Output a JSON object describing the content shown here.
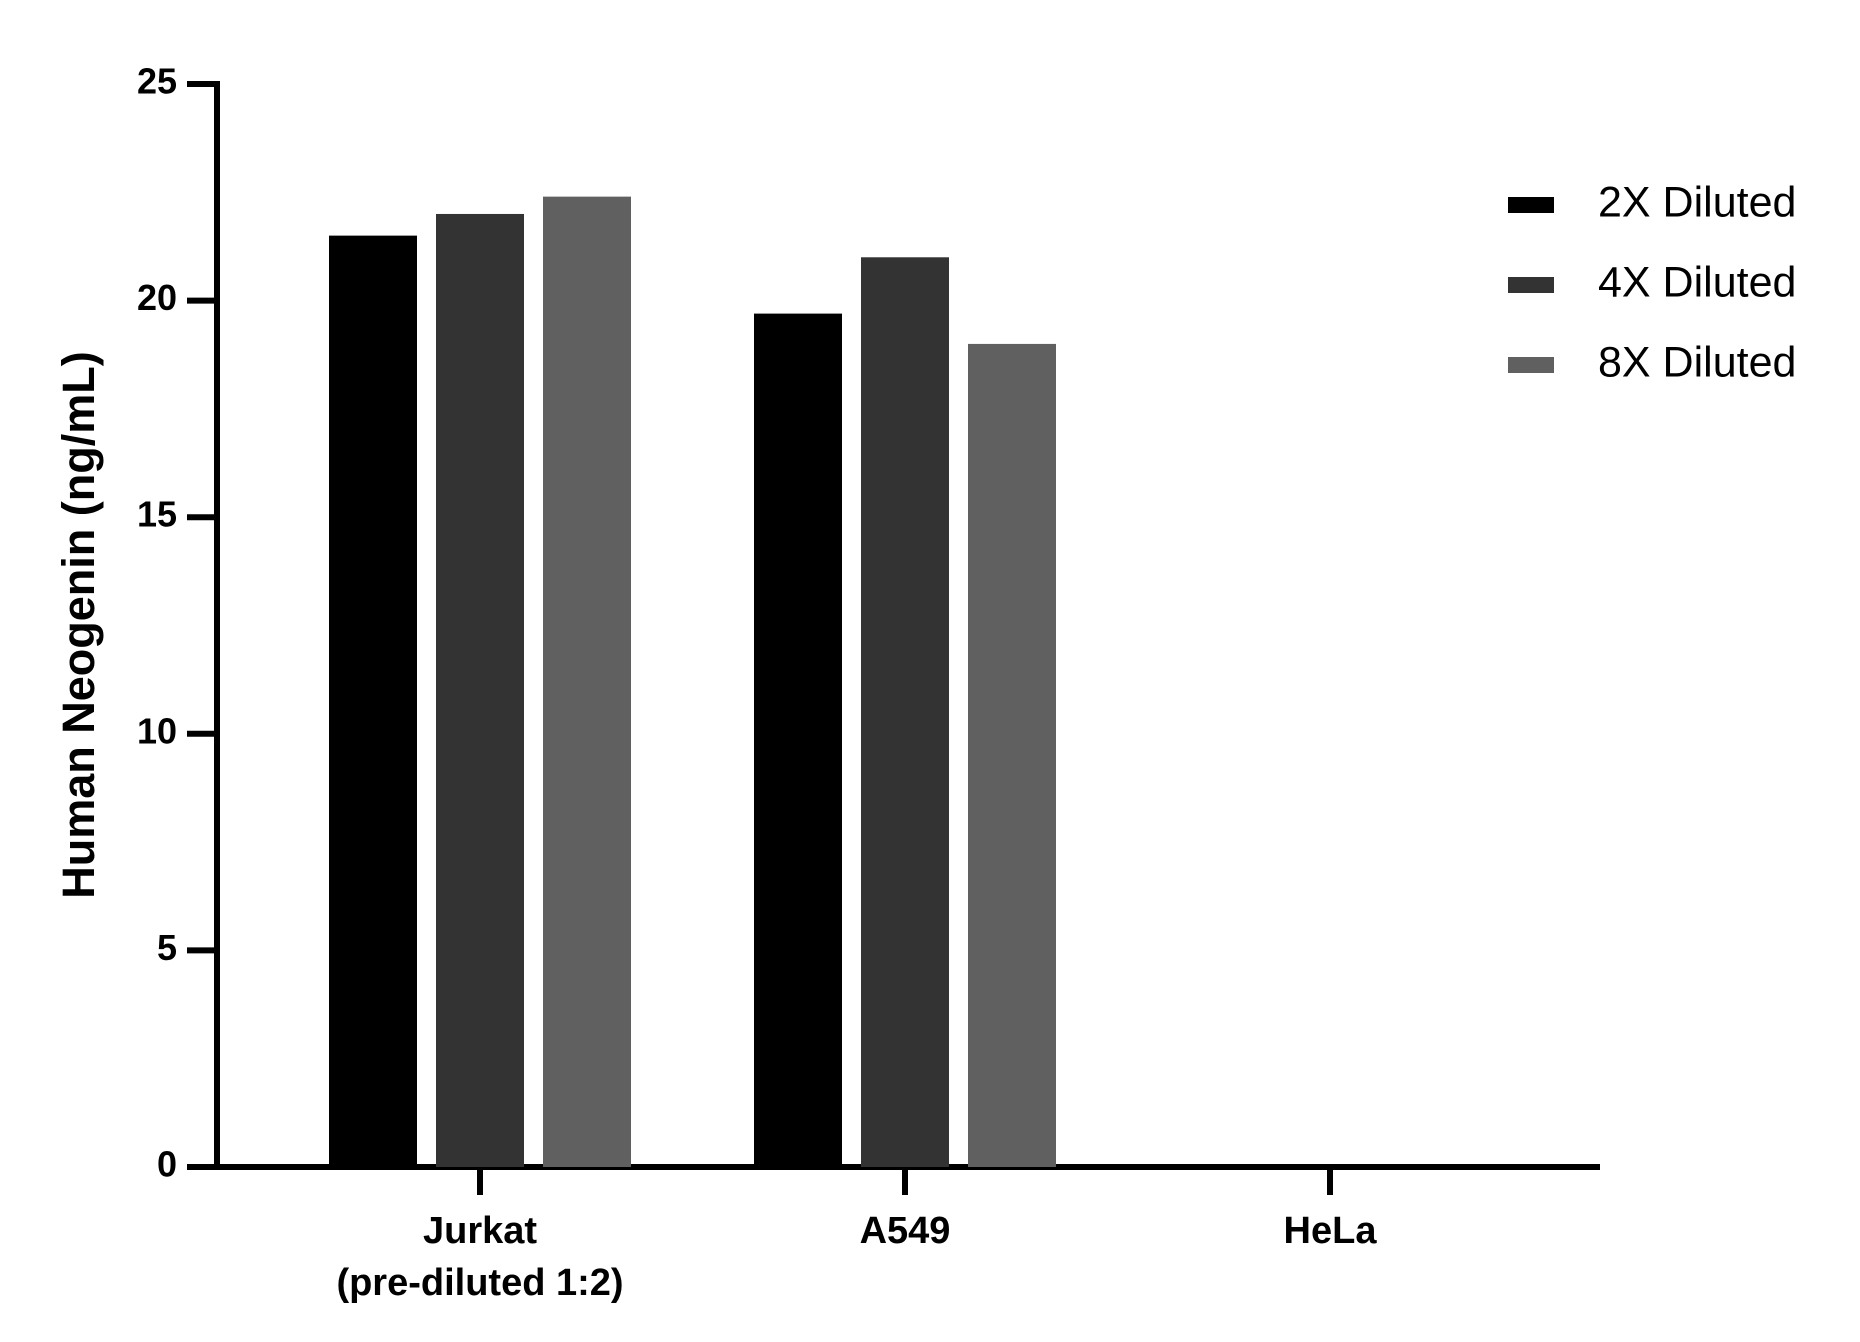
{
  "chart_data": {
    "type": "bar",
    "y_label": "Human Neogenin (ng/mL)",
    "categories": [
      "Jurkat\n(pre-diluted 1:2)",
      "A549",
      "HeLa"
    ],
    "series": [
      {
        "name": "2X Diluted",
        "color": "#000000",
        "values": [
          21.5,
          19.7,
          null
        ]
      },
      {
        "name": "4X Diluted",
        "color": "#333333",
        "values": [
          22.0,
          21.0,
          null
        ]
      },
      {
        "name": "8X Diluted",
        "color": "#606060",
        "values": [
          22.4,
          19.0,
          null
        ]
      }
    ],
    "ylim": [
      0,
      25
    ],
    "yticks": [
      0,
      5,
      10,
      15,
      20,
      25
    ],
    "grid": false,
    "legend": "right"
  }
}
